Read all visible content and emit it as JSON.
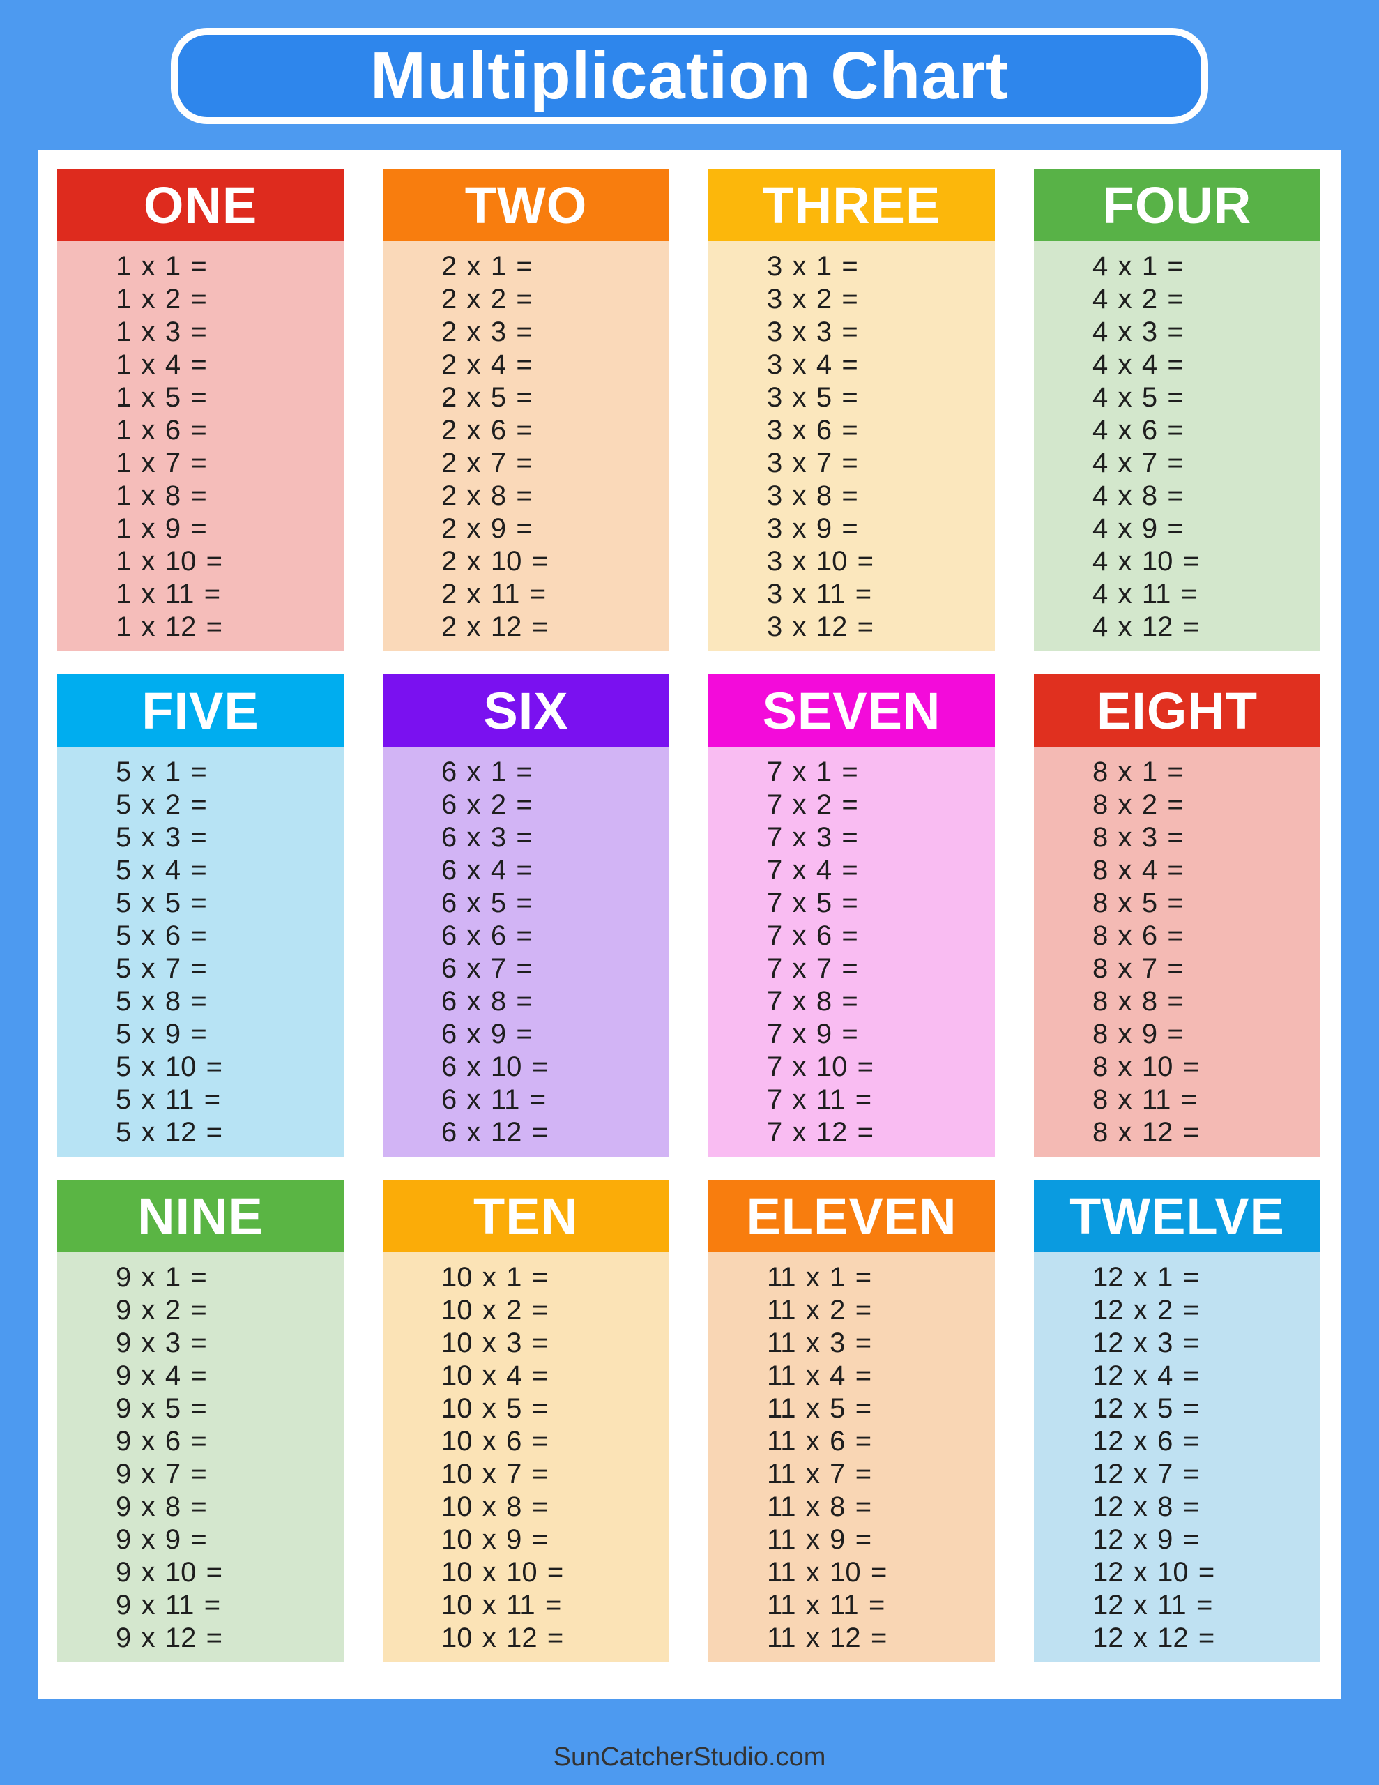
{
  "title": "Multiplication Chart",
  "footer": {
    "text": "SunCatcherStudio.com"
  },
  "colors": {
    "page_background": "#4D9AF0",
    "title_box_fill": "#2E86EC",
    "title_box_border": "#FFFFFF",
    "sheet_background": "#FFFFFF",
    "row_text": "#1E1E1E",
    "footer_text": "#333333"
  },
  "cards": [
    {
      "label": "ONE",
      "factor": 1,
      "header_color": "#DE2B1E",
      "body_color": "#F5BDBA",
      "rows": [
        "1 x 1 =",
        "1 x 2 =",
        "1 x 3 =",
        "1 x 4 =",
        "1 x 5 =",
        "1 x 6 =",
        "1 x 7 =",
        "1 x 8 =",
        "1 x 9 =",
        "1 x 10 =",
        "1 x 11 =",
        "1 x 12 ="
      ]
    },
    {
      "label": "TWO",
      "factor": 2,
      "header_color": "#F87D0E",
      "body_color": "#FAD9B9",
      "rows": [
        "2 x 1 =",
        "2 x 2 =",
        "2 x 3 =",
        "2 x 4 =",
        "2 x 5 =",
        "2 x 6 =",
        "2 x 7 =",
        "2 x 8 =",
        "2 x 9 =",
        "2 x 10 =",
        "2 x 11 =",
        "2 x 12 ="
      ]
    },
    {
      "label": "THREE",
      "factor": 3,
      "header_color": "#FCB70B",
      "body_color": "#FBE7BD",
      "rows": [
        "3 x 1 =",
        "3 x 2 =",
        "3 x 3 =",
        "3 x 4 =",
        "3 x 5 =",
        "3 x 6 =",
        "3 x 7 =",
        "3 x 8 =",
        "3 x 9 =",
        "3 x 10 =",
        "3 x 11 =",
        "3 x 12 ="
      ]
    },
    {
      "label": "FOUR",
      "factor": 4,
      "header_color": "#58B247",
      "body_color": "#D3E7CC",
      "rows": [
        "4 x 1 =",
        "4 x 2 =",
        "4 x 3 =",
        "4 x 4 =",
        "4 x 5 =",
        "4 x 6 =",
        "4 x 7 =",
        "4 x 8 =",
        "4 x 9 =",
        "4 x 10 =",
        "4 x 11 =",
        "4 x 12 ="
      ]
    },
    {
      "label": "FIVE",
      "factor": 5,
      "header_color": "#00ADEF",
      "body_color": "#B7E3F4",
      "rows": [
        "5 x 1 =",
        "5 x 2 =",
        "5 x 3 =",
        "5 x 4 =",
        "5 x 5 =",
        "5 x 6 =",
        "5 x 7 =",
        "5 x 8 =",
        "5 x 9 =",
        "5 x 10 =",
        "5 x 11 =",
        "5 x 12 ="
      ]
    },
    {
      "label": "SIX",
      "factor": 6,
      "header_color": "#7A11F0",
      "body_color": "#D2B4F5",
      "rows": [
        "6 x 1 =",
        "6 x 2 =",
        "6 x 3 =",
        "6 x 4 =",
        "6 x 5 =",
        "6 x 6 =",
        "6 x 7 =",
        "6 x 8 =",
        "6 x 9 =",
        "6 x 10 =",
        "6 x 11 =",
        "6 x 12 ="
      ]
    },
    {
      "label": "SEVEN",
      "factor": 7,
      "header_color": "#F30BDA",
      "body_color": "#F9BCF2",
      "rows": [
        "7 x 1 =",
        "7 x 2 =",
        "7 x 3 =",
        "7 x 4 =",
        "7 x 5 =",
        "7 x 6 =",
        "7 x 7 =",
        "7 x 8 =",
        "7 x 9 =",
        "7 x 10 =",
        "7 x 11 =",
        "7 x 12 ="
      ]
    },
    {
      "label": "EIGHT",
      "factor": 8,
      "header_color": "#E0301F",
      "body_color": "#F4BAB4",
      "rows": [
        "8 x 1 =",
        "8 x 2 =",
        "8 x 3 =",
        "8 x 4 =",
        "8 x 5 =",
        "8 x 6 =",
        "8 x 7 =",
        "8 x 8 =",
        "8 x 9 =",
        "8 x 10 =",
        "8 x 11 =",
        "8 x 12 ="
      ]
    },
    {
      "label": "NINE",
      "factor": 9,
      "header_color": "#5AB544",
      "body_color": "#D4E7CE",
      "rows": [
        "9 x 1 =",
        "9 x 2 =",
        "9 x 3 =",
        "9 x 4 =",
        "9 x 5 =",
        "9 x 6 =",
        "9 x 7 =",
        "9 x 8 =",
        "9 x 9 =",
        "9 x 10 =",
        "9 x 11 =",
        "9 x 12 ="
      ]
    },
    {
      "label": "TEN",
      "factor": 10,
      "header_color": "#FBAC08",
      "body_color": "#FBE3B6",
      "rows": [
        "10 x 1 =",
        "10 x 2 =",
        "10 x 3 =",
        "10 x 4 =",
        "10 x 5 =",
        "10 x 6 =",
        "10 x 7 =",
        "10 x 8 =",
        "10 x 9 =",
        "10 x 10 =",
        "10 x 11 =",
        "10 x 12 ="
      ]
    },
    {
      "label": "ELEVEN",
      "factor": 11,
      "header_color": "#F87D0E",
      "body_color": "#F9D6B4",
      "rows": [
        "11 x 1 =",
        "11 x 2 =",
        "11 x 3 =",
        "11 x 4 =",
        "11 x 5 =",
        "11 x 6 =",
        "11 x 7 =",
        "11 x 8 =",
        "11 x 9 =",
        "11 x 10 =",
        "11 x 11 =",
        "11 x 12 ="
      ]
    },
    {
      "label": "TWELVE",
      "factor": 12,
      "header_color": "#0A9BE0",
      "body_color": "#BFE1F2",
      "rows": [
        "12 x 1 =",
        "12 x 2 =",
        "12 x 3 =",
        "12 x 4 =",
        "12 x 5 =",
        "12 x 6 =",
        "12 x 7 =",
        "12 x 8 =",
        "12 x 9 =",
        "12 x 10 =",
        "12 x 11 =",
        "12 x 12 ="
      ]
    }
  ]
}
